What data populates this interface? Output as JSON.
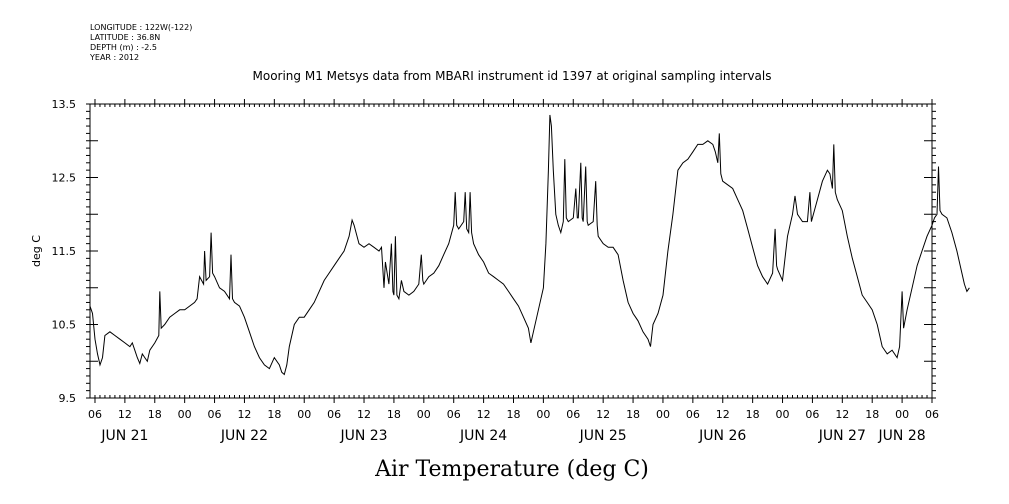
{
  "header": {
    "lines": [
      "LONGITUDE : 122W(-122)",
      "LATITUDE : 36.8N",
      "DEPTH (m) : -2.5",
      "YEAR : 2012"
    ]
  },
  "chart_data": {
    "type": "line",
    "title": "Mooring M1 Metsys data from MBARI instrument id 1397 at original sampling intervals",
    "xlabel": "Air Temperature (deg C)",
    "ylabel": "deg C",
    "x_unit": "hours since 2012-06-21 00:00",
    "xlim": [
      5,
      174
    ],
    "ylim": [
      9.5,
      13.5
    ],
    "yticks": [
      9.5,
      10.5,
      11.5,
      12.5,
      13.5
    ],
    "hour_ticks": [
      {
        "h": 6,
        "label": "06"
      },
      {
        "h": 12,
        "label": "12"
      },
      {
        "h": 18,
        "label": "18"
      },
      {
        "h": 24,
        "label": "00"
      },
      {
        "h": 30,
        "label": "06"
      },
      {
        "h": 36,
        "label": "12"
      },
      {
        "h": 42,
        "label": "18"
      },
      {
        "h": 48,
        "label": "00"
      },
      {
        "h": 54,
        "label": "06"
      },
      {
        "h": 60,
        "label": "12"
      },
      {
        "h": 66,
        "label": "18"
      },
      {
        "h": 72,
        "label": "00"
      },
      {
        "h": 78,
        "label": "06"
      },
      {
        "h": 84,
        "label": "12"
      },
      {
        "h": 90,
        "label": "18"
      },
      {
        "h": 96,
        "label": "00"
      },
      {
        "h": 102,
        "label": "06"
      },
      {
        "h": 108,
        "label": "12"
      },
      {
        "h": 114,
        "label": "18"
      },
      {
        "h": 120,
        "label": "00"
      },
      {
        "h": 126,
        "label": "06"
      },
      {
        "h": 132,
        "label": "12"
      },
      {
        "h": 138,
        "label": "18"
      },
      {
        "h": 144,
        "label": "00"
      },
      {
        "h": 150,
        "label": "06"
      },
      {
        "h": 156,
        "label": "12"
      },
      {
        "h": 162,
        "label": "18"
      },
      {
        "h": 168,
        "label": "00"
      },
      {
        "h": 174,
        "label": "06"
      }
    ],
    "day_labels": [
      {
        "h": 12,
        "label": "JUN 21"
      },
      {
        "h": 36,
        "label": "JUN 22"
      },
      {
        "h": 60,
        "label": "JUN 23"
      },
      {
        "h": 84,
        "label": "JUN 24"
      },
      {
        "h": 108,
        "label": "JUN 25"
      },
      {
        "h": 132,
        "label": "JUN 26"
      },
      {
        "h": 156,
        "label": "JUN 27"
      },
      {
        "h": 168,
        "label": "JUN 28"
      }
    ],
    "series": [
      {
        "color": "#000000",
        "points": [
          [
            5.0,
            10.75
          ],
          [
            5.5,
            10.65
          ],
          [
            6.0,
            10.3
          ],
          [
            6.5,
            10.1
          ],
          [
            7.0,
            9.95
          ],
          [
            7.5,
            10.05
          ],
          [
            8.0,
            10.35
          ],
          [
            9.0,
            10.4
          ],
          [
            10.0,
            10.35
          ],
          [
            11.0,
            10.3
          ],
          [
            12.0,
            10.25
          ],
          [
            13.0,
            10.2
          ],
          [
            13.5,
            10.25
          ],
          [
            14.0,
            10.15
          ],
          [
            14.5,
            10.05
          ],
          [
            15.0,
            9.97
          ],
          [
            15.5,
            10.1
          ],
          [
            16.0,
            10.05
          ],
          [
            16.5,
            10.0
          ],
          [
            17.0,
            10.15
          ],
          [
            18.0,
            10.25
          ],
          [
            18.8,
            10.35
          ],
          [
            19.0,
            10.95
          ],
          [
            19.3,
            10.45
          ],
          [
            20.0,
            10.5
          ],
          [
            21.0,
            10.6
          ],
          [
            22.0,
            10.65
          ],
          [
            23.0,
            10.7
          ],
          [
            24.0,
            10.7
          ],
          [
            25.0,
            10.75
          ],
          [
            26.0,
            10.8
          ],
          [
            26.5,
            10.85
          ],
          [
            27.0,
            11.15
          ],
          [
            27.8,
            11.05
          ],
          [
            28.0,
            11.5
          ],
          [
            28.3,
            11.1
          ],
          [
            29.0,
            11.15
          ],
          [
            29.3,
            11.75
          ],
          [
            29.6,
            11.2
          ],
          [
            30.0,
            11.15
          ],
          [
            31.0,
            11.0
          ],
          [
            32.0,
            10.95
          ],
          [
            33.0,
            10.85
          ],
          [
            33.3,
            11.45
          ],
          [
            33.6,
            10.85
          ],
          [
            34.0,
            10.8
          ],
          [
            35.0,
            10.75
          ],
          [
            36.0,
            10.6
          ],
          [
            37.0,
            10.4
          ],
          [
            38.0,
            10.2
          ],
          [
            39.0,
            10.05
          ],
          [
            40.0,
            9.95
          ],
          [
            41.0,
            9.9
          ],
          [
            42.0,
            10.05
          ],
          [
            43.0,
            9.95
          ],
          [
            43.5,
            9.85
          ],
          [
            44.0,
            9.82
          ],
          [
            44.5,
            9.95
          ],
          [
            45.0,
            10.2
          ],
          [
            46.0,
            10.5
          ],
          [
            47.0,
            10.6
          ],
          [
            48.0,
            10.6
          ],
          [
            49.0,
            10.7
          ],
          [
            50.0,
            10.8
          ],
          [
            51.0,
            10.95
          ],
          [
            52.0,
            11.1
          ],
          [
            53.0,
            11.2
          ],
          [
            54.0,
            11.3
          ],
          [
            55.0,
            11.4
          ],
          [
            56.0,
            11.5
          ],
          [
            57.0,
            11.7
          ],
          [
            57.6,
            11.92
          ],
          [
            58.0,
            11.85
          ],
          [
            59.0,
            11.6
          ],
          [
            60.0,
            11.55
          ],
          [
            61.0,
            11.6
          ],
          [
            62.0,
            11.55
          ],
          [
            63.0,
            11.5
          ],
          [
            63.5,
            11.55
          ],
          [
            64.0,
            11.0
          ],
          [
            64.3,
            11.35
          ],
          [
            65.0,
            11.05
          ],
          [
            65.5,
            11.6
          ],
          [
            65.8,
            10.95
          ],
          [
            66.0,
            10.9
          ],
          [
            66.3,
            11.7
          ],
          [
            66.6,
            10.9
          ],
          [
            67.0,
            10.85
          ],
          [
            67.5,
            11.1
          ],
          [
            68.0,
            10.95
          ],
          [
            69.0,
            10.9
          ],
          [
            70.0,
            10.95
          ],
          [
            71.0,
            11.05
          ],
          [
            71.5,
            11.45
          ],
          [
            71.8,
            11.1
          ],
          [
            72.0,
            11.05
          ],
          [
            73.0,
            11.15
          ],
          [
            74.0,
            11.2
          ],
          [
            75.0,
            11.3
          ],
          [
            76.0,
            11.45
          ],
          [
            77.0,
            11.6
          ],
          [
            78.0,
            11.85
          ],
          [
            78.3,
            12.3
          ],
          [
            78.6,
            11.85
          ],
          [
            79.0,
            11.8
          ],
          [
            80.0,
            11.9
          ],
          [
            80.3,
            12.3
          ],
          [
            80.6,
            11.8
          ],
          [
            81.0,
            11.75
          ],
          [
            81.3,
            12.3
          ],
          [
            81.6,
            11.75
          ],
          [
            82.0,
            11.6
          ],
          [
            83.0,
            11.45
          ],
          [
            84.0,
            11.35
          ],
          [
            85.0,
            11.2
          ],
          [
            86.0,
            11.15
          ],
          [
            87.0,
            11.1
          ],
          [
            88.0,
            11.05
          ],
          [
            89.0,
            10.95
          ],
          [
            90.0,
            10.85
          ],
          [
            91.0,
            10.75
          ],
          [
            92.0,
            10.6
          ],
          [
            93.0,
            10.45
          ],
          [
            93.5,
            10.25
          ],
          [
            94.0,
            10.4
          ],
          [
            95.0,
            10.7
          ],
          [
            96.0,
            11.0
          ],
          [
            96.5,
            11.6
          ],
          [
            97.0,
            12.6
          ],
          [
            97.3,
            13.35
          ],
          [
            97.6,
            13.2
          ],
          [
            98.0,
            12.6
          ],
          [
            98.5,
            12.0
          ],
          [
            99.0,
            11.85
          ],
          [
            99.5,
            11.75
          ],
          [
            100.0,
            11.9
          ],
          [
            100.3,
            12.75
          ],
          [
            100.6,
            11.95
          ],
          [
            101.0,
            11.9
          ],
          [
            102.0,
            11.95
          ],
          [
            102.5,
            12.35
          ],
          [
            102.8,
            11.95
          ],
          [
            103.0,
            11.95
          ],
          [
            103.5,
            12.7
          ],
          [
            103.8,
            11.95
          ],
          [
            104.0,
            11.9
          ],
          [
            104.5,
            12.65
          ],
          [
            104.8,
            11.9
          ],
          [
            105.0,
            11.85
          ],
          [
            106.0,
            11.9
          ],
          [
            106.5,
            12.45
          ],
          [
            106.8,
            11.85
          ],
          [
            107.0,
            11.7
          ],
          [
            108.0,
            11.6
          ],
          [
            109.0,
            11.55
          ],
          [
            110.0,
            11.55
          ],
          [
            111.0,
            11.45
          ],
          [
            112.0,
            11.1
          ],
          [
            113.0,
            10.8
          ],
          [
            114.0,
            10.65
          ],
          [
            115.0,
            10.55
          ],
          [
            116.0,
            10.4
          ],
          [
            117.0,
            10.3
          ],
          [
            117.5,
            10.2
          ],
          [
            118.0,
            10.5
          ],
          [
            119.0,
            10.65
          ],
          [
            120.0,
            10.9
          ],
          [
            121.0,
            11.5
          ],
          [
            122.0,
            12.0
          ],
          [
            123.0,
            12.6
          ],
          [
            124.0,
            12.7
          ],
          [
            125.0,
            12.75
          ],
          [
            126.0,
            12.85
          ],
          [
            127.0,
            12.95
          ],
          [
            128.0,
            12.95
          ],
          [
            129.0,
            13.0
          ],
          [
            130.0,
            12.95
          ],
          [
            130.5,
            12.85
          ],
          [
            131.0,
            12.7
          ],
          [
            131.3,
            13.1
          ],
          [
            131.6,
            12.55
          ],
          [
            132.0,
            12.45
          ],
          [
            133.0,
            12.4
          ],
          [
            134.0,
            12.35
          ],
          [
            135.0,
            12.2
          ],
          [
            136.0,
            12.05
          ],
          [
            137.0,
            11.8
          ],
          [
            138.0,
            11.55
          ],
          [
            139.0,
            11.3
          ],
          [
            140.0,
            11.15
          ],
          [
            141.0,
            11.05
          ],
          [
            142.0,
            11.2
          ],
          [
            142.5,
            11.8
          ],
          [
            142.8,
            11.3
          ],
          [
            143.0,
            11.25
          ],
          [
            144.0,
            11.1
          ],
          [
            145.0,
            11.7
          ],
          [
            146.0,
            12.0
          ],
          [
            146.5,
            12.25
          ],
          [
            147.0,
            12.0
          ],
          [
            148.0,
            11.9
          ],
          [
            149.0,
            11.9
          ],
          [
            149.5,
            12.3
          ],
          [
            149.8,
            11.9
          ],
          [
            150.0,
            11.95
          ],
          [
            151.0,
            12.2
          ],
          [
            152.0,
            12.45
          ],
          [
            153.0,
            12.6
          ],
          [
            153.5,
            12.55
          ],
          [
            154.0,
            12.35
          ],
          [
            154.3,
            12.95
          ],
          [
            154.6,
            12.3
          ],
          [
            155.0,
            12.2
          ],
          [
            156.0,
            12.05
          ],
          [
            157.0,
            11.7
          ],
          [
            158.0,
            11.4
          ],
          [
            159.0,
            11.15
          ],
          [
            160.0,
            10.9
          ],
          [
            161.0,
            10.8
          ],
          [
            162.0,
            10.7
          ],
          [
            163.0,
            10.5
          ],
          [
            164.0,
            10.2
          ],
          [
            165.0,
            10.1
          ],
          [
            166.0,
            10.15
          ],
          [
            167.0,
            10.05
          ],
          [
            167.5,
            10.2
          ],
          [
            168.0,
            10.95
          ],
          [
            168.3,
            10.45
          ],
          [
            169.0,
            10.7
          ],
          [
            170.0,
            11.0
          ],
          [
            171.0,
            11.3
          ],
          [
            172.0,
            11.5
          ],
          [
            173.0,
            11.7
          ],
          [
            174.0,
            11.85
          ],
          [
            174.5,
            11.95
          ],
          [
            175.0,
            12.0
          ],
          [
            175.3,
            12.65
          ],
          [
            175.6,
            12.05
          ],
          [
            176.0,
            12.0
          ],
          [
            177.0,
            11.95
          ],
          [
            178.0,
            11.75
          ],
          [
            179.0,
            11.5
          ],
          [
            180.0,
            11.2
          ],
          [
            180.5,
            11.05
          ],
          [
            181.0,
            10.95
          ],
          [
            181.5,
            11.0
          ]
        ]
      }
    ]
  }
}
